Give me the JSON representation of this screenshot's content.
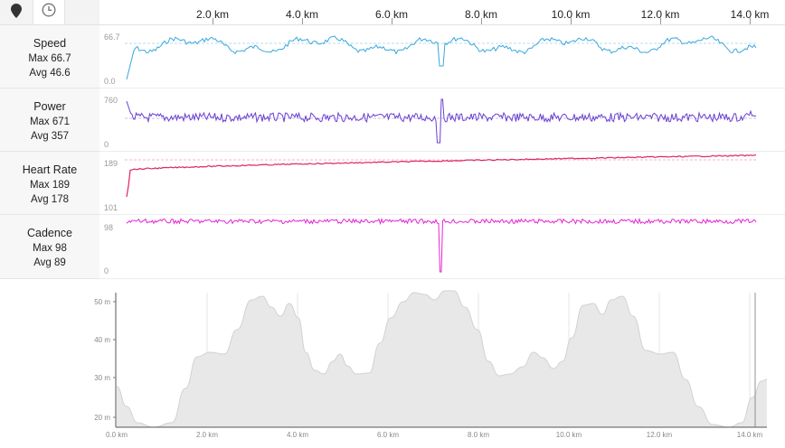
{
  "tabs": [
    {
      "id": "map",
      "icon": "map-pin-icon"
    },
    {
      "id": "time",
      "icon": "clock-icon"
    }
  ],
  "top_axis": {
    "ticks": [
      "2.0 km",
      "4.0 km",
      "6.0 km",
      "8.0 km",
      "10.0 km",
      "12.0 km",
      "14.0 km"
    ]
  },
  "tracks": [
    {
      "name": "Speed",
      "max_label": "Max 66.7",
      "avg_label": "Avg 46.6",
      "axis_top": "66.7",
      "axis_bottom": "0.0",
      "color": "#3aa8dc"
    },
    {
      "name": "Power",
      "max_label": "Max 671",
      "avg_label": "Avg 357",
      "axis_top": "760",
      "axis_bottom": "0",
      "color": "#6a3fd0"
    },
    {
      "name": "Heart Rate",
      "max_label": "Max 189",
      "avg_label": "Avg 178",
      "axis_top": "189",
      "axis_bottom": "101",
      "color": "#e0245e"
    },
    {
      "name": "Cadence",
      "max_label": "Max 98",
      "avg_label": "Avg 89",
      "axis_top": "98",
      "axis_bottom": "0",
      "color": "#e426d4"
    }
  ],
  "elevation": {
    "y_ticks": [
      "50 m",
      "40 m",
      "30 m",
      "20 m"
    ],
    "x_ticks": [
      "0.0 km",
      "2.0 km",
      "4.0 km",
      "6.0 km",
      "8.0 km",
      "10.0 km",
      "12.0 km",
      "14.0 km"
    ],
    "fill_color": "#e8e8e8",
    "line_color": "#d2d2d2"
  }
}
